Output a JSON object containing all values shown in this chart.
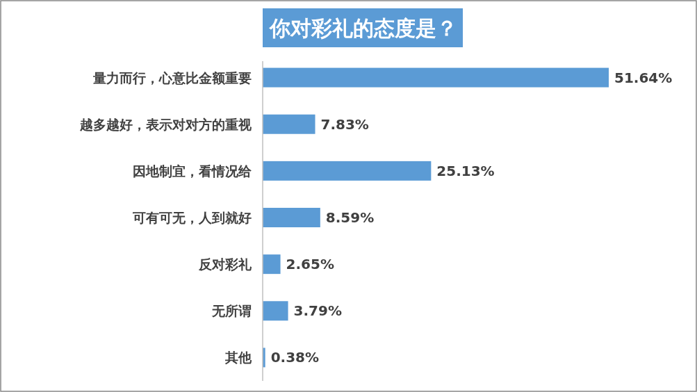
{
  "chart_data": {
    "type": "bar",
    "orientation": "horizontal",
    "title": "你对彩礼的态度是？",
    "categories": [
      "量力而行，心意比金额重要",
      "越多越好，表示对对方的重视",
      "因地制宜，看情况给",
      "可有可无，人到就好",
      "反对彩礼",
      "无所谓",
      "其他"
    ],
    "values": [
      51.64,
      7.83,
      25.13,
      8.59,
      2.65,
      3.79,
      0.38
    ],
    "value_labels": [
      "51.64%",
      "7.83%",
      "25.13%",
      "8.59%",
      "2.65%",
      "3.79%",
      "0.38%"
    ],
    "color": "#5b9bd5"
  }
}
